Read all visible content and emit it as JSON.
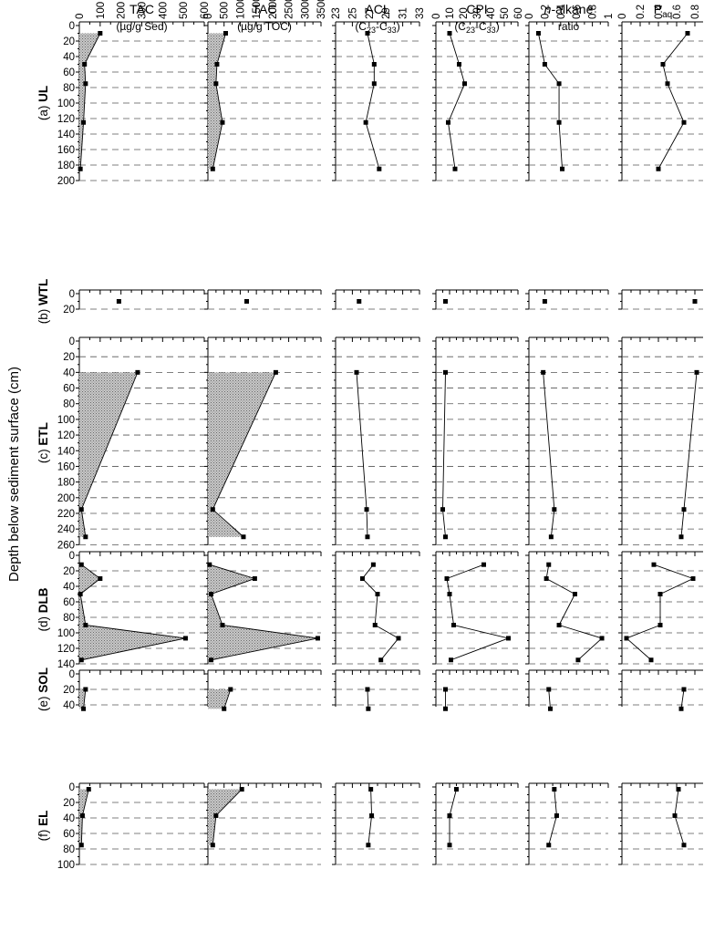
{
  "chart_data": {
    "type": "line",
    "ylabel": "Depth below sediment surface (cm)",
    "columns": [
      {
        "id": "tac_sed",
        "line1": "TAC",
        "line2": "(µg/g Sed)",
        "ticks": [
          "0",
          "100",
          "200",
          "300",
          "400",
          "500",
          "600"
        ],
        "xlim": [
          0,
          600
        ],
        "fill": true
      },
      {
        "id": "tac_toc",
        "line1": "TAC",
        "line2": "(µg/g TOC)",
        "ticks": [
          "0",
          "500",
          "1000",
          "1500",
          "2000",
          "2500",
          "3000",
          "3500"
        ],
        "xlim": [
          0,
          3500
        ],
        "fill": true
      },
      {
        "id": "acl",
        "line1": "ACL",
        "line2": "(C23-C33)",
        "ticks": [
          "23",
          "25",
          "27",
          "29",
          "31",
          "33"
        ],
        "xlim": [
          23,
          33
        ],
        "fill": false
      },
      {
        "id": "cpi",
        "line1": "CPI",
        "line2": "(C23-C33)",
        "ticks": [
          "0",
          "10",
          "20",
          "30",
          "40",
          "50",
          "60"
        ],
        "xlim": [
          0,
          60
        ],
        "fill": false
      },
      {
        "id": "alkane",
        "line1": "n-alkane",
        "line2": "ratio",
        "ticks": [
          "0",
          "0.2",
          "0.4",
          "0.6",
          "0.8",
          "1"
        ],
        "xlim": [
          0,
          1
        ],
        "fill": false
      },
      {
        "id": "paq",
        "line1": "Paq",
        "line2": "",
        "ticks": [
          "0",
          "0.2",
          "0.4",
          "0.6",
          "0.8"
        ],
        "xlim": [
          0,
          0.9
        ],
        "fill": false
      }
    ],
    "sites": [
      {
        "prefix": "(a)",
        "name": "UL",
        "ylim": [
          0,
          200
        ],
        "depth_ticks": [
          "0",
          "20",
          "40",
          "60",
          "80",
          "100",
          "120",
          "140",
          "160",
          "180",
          "200"
        ],
        "depths": [
          10,
          50,
          75,
          125,
          185
        ],
        "series": {
          "tac_sed": [
            100,
            25,
            30,
            20,
            5
          ],
          "tac_toc": [
            550,
            280,
            250,
            450,
            150
          ],
          "acl": [
            26.8,
            27.6,
            27.6,
            26.6,
            28.2
          ],
          "cpi": [
            10,
            17,
            21,
            9,
            14
          ],
          "alkane": [
            0.12,
            0.2,
            0.38,
            0.38,
            0.42
          ],
          "paq": [
            0.72,
            0.45,
            0.5,
            0.68,
            0.4
          ]
        }
      },
      {
        "prefix": "(b)",
        "name": "WTL",
        "ylim": [
          0,
          20
        ],
        "depth_ticks": [
          "0",
          "20"
        ],
        "depths": [
          10
        ],
        "series": {
          "tac_sed": [
            190
          ],
          "tac_toc": [
            1200
          ],
          "acl": [
            25.8
          ],
          "cpi": [
            7
          ],
          "alkane": [
            0.2
          ],
          "paq": [
            0.8
          ]
        }
      },
      {
        "prefix": "(c)",
        "name": "ETL",
        "ylim": [
          0,
          260
        ],
        "depth_ticks": [
          "0",
          "20",
          "40",
          "60",
          "80",
          "100",
          "120",
          "140",
          "160",
          "180",
          "200",
          "220",
          "240",
          "260"
        ],
        "depths": [
          40,
          215,
          250
        ],
        "series": {
          "tac_sed": [
            280,
            10,
            30
          ],
          "tac_toc": [
            2100,
            150,
            1100
          ],
          "acl": [
            25.5,
            26.7,
            26.8
          ],
          "cpi": [
            7,
            5,
            7
          ],
          "alkane": [
            0.18,
            0.32,
            0.28
          ],
          "paq": [
            0.82,
            0.68,
            0.65
          ]
        }
      },
      {
        "prefix": "(d)",
        "name": "DLB",
        "ylim": [
          0,
          140
        ],
        "depth_ticks": [
          "0",
          "20",
          "40",
          "60",
          "80",
          "100",
          "120",
          "140"
        ],
        "depths": [
          12,
          30,
          50,
          90,
          107,
          135
        ],
        "series": {
          "tac_sed": [
            10,
            100,
            5,
            30,
            510,
            10
          ],
          "tac_toc": [
            50,
            1450,
            100,
            450,
            3400,
            100
          ],
          "acl": [
            27.5,
            26.2,
            28.0,
            27.7,
            30.5,
            28.4
          ],
          "cpi": [
            35,
            8,
            10,
            13,
            53,
            11
          ],
          "alkane": [
            0.25,
            0.22,
            0.58,
            0.38,
            0.92,
            0.62
          ],
          "paq": [
            0.35,
            0.78,
            0.42,
            0.42,
            0.05,
            0.32
          ]
        }
      },
      {
        "prefix": "(e)",
        "name": "SOL",
        "ylim": [
          0,
          40
        ],
        "depth_ticks": [
          "0",
          "20",
          "40"
        ],
        "depths": [
          20,
          45
        ],
        "series": {
          "tac_sed": [
            30,
            20
          ],
          "tac_toc": [
            700,
            500
          ],
          "acl": [
            26.8,
            26.9
          ],
          "cpi": [
            7,
            7
          ],
          "alkane": [
            0.25,
            0.27
          ],
          "paq": [
            0.68,
            0.65
          ]
        }
      },
      {
        "prefix": "(f)",
        "name": "EL",
        "ylim": [
          0,
          100
        ],
        "depth_ticks": [
          "0",
          "20",
          "40",
          "60",
          "80",
          "100"
        ],
        "depths": [
          3,
          37,
          75
        ],
        "series": {
          "tac_sed": [
            45,
            15,
            10
          ],
          "tac_toc": [
            1050,
            250,
            150
          ],
          "acl": [
            27.2,
            27.3,
            26.9
          ],
          "cpi": [
            15,
            10,
            10
          ],
          "alkane": [
            0.32,
            0.35,
            0.25
          ],
          "paq": [
            0.62,
            0.58,
            0.68
          ]
        }
      }
    ]
  }
}
